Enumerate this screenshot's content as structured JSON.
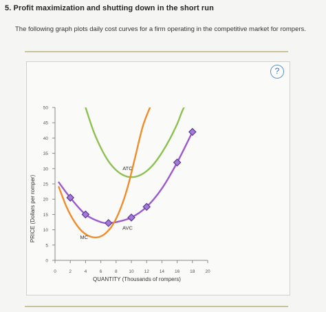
{
  "question": {
    "heading": "5. Profit maximization and shutting down in the short run",
    "intro": "The following graph plots daily cost curves for a firm operating in the competitive market for rompers."
  },
  "help_button": {
    "label": "?",
    "icon": "question-mark-icon"
  },
  "colors": {
    "atc": "#8cc152",
    "avc": "#9b59d0",
    "mc": "#f08c2a",
    "marker_fill": "#a47ad6",
    "marker_stroke": "#5b3a9c",
    "axis": "#888888"
  },
  "chart_data": {
    "type": "line",
    "xlabel": "QUANTITY (Thousands of rompers)",
    "ylabel": "PRICE (Dollars per romper)",
    "xlim": [
      0,
      20
    ],
    "ylim": [
      0,
      50
    ],
    "x_ticks": [
      0,
      2,
      4,
      6,
      8,
      10,
      12,
      14,
      16,
      18,
      20
    ],
    "y_ticks": [
      0,
      5,
      10,
      15,
      20,
      25,
      30,
      35,
      40,
      45,
      50
    ],
    "grid": false,
    "series": [
      {
        "name": "ATC",
        "color_key": "atc",
        "x": [
          4,
          5,
          6,
          7,
          8,
          9,
          10,
          11,
          12,
          13,
          14,
          15,
          16,
          17,
          18
        ],
        "y": [
          50,
          42.5,
          36.8,
          32.4,
          29.5,
          27.8,
          27.2,
          27.7,
          29.2,
          31.7,
          35.2,
          39.5,
          44.6,
          50.4,
          50.4
        ]
      },
      {
        "name": "AVC",
        "color_key": "avc",
        "x": [
          0.5,
          2,
          4,
          6,
          7,
          8,
          10,
          12,
          14,
          16,
          18
        ],
        "y": [
          25.5,
          20.5,
          15,
          12.5,
          12.2,
          12.5,
          14,
          17.5,
          23.5,
          32,
          42
        ]
      },
      {
        "name": "MC",
        "color_key": "mc",
        "x": [
          0.5,
          1.5,
          2.5,
          3.5,
          4.5,
          5.5,
          6.5,
          7.5,
          8.5,
          9.5,
          10.5,
          11.5,
          12.5
        ],
        "y": [
          24,
          17.5,
          12.8,
          9.6,
          7.9,
          7.5,
          8.6,
          11.4,
          16.4,
          23.8,
          33.8,
          43.8,
          50.4
        ]
      }
    ],
    "markers": {
      "series": "AVC",
      "points": [
        {
          "x": 2,
          "y": 20.5
        },
        {
          "x": 4,
          "y": 15
        },
        {
          "x": 7,
          "y": 12.2
        },
        {
          "x": 10,
          "y": 14
        },
        {
          "x": 12,
          "y": 17.5
        },
        {
          "x": 16,
          "y": 32
        },
        {
          "x": 18,
          "y": 42
        }
      ]
    },
    "curve_labels": [
      {
        "text": "ATC",
        "x": 9.5,
        "y": 29.5
      },
      {
        "text": "AVC",
        "x": 9.5,
        "y": 10
      },
      {
        "text": "MC",
        "x": 3.8,
        "y": 7
      }
    ]
  }
}
